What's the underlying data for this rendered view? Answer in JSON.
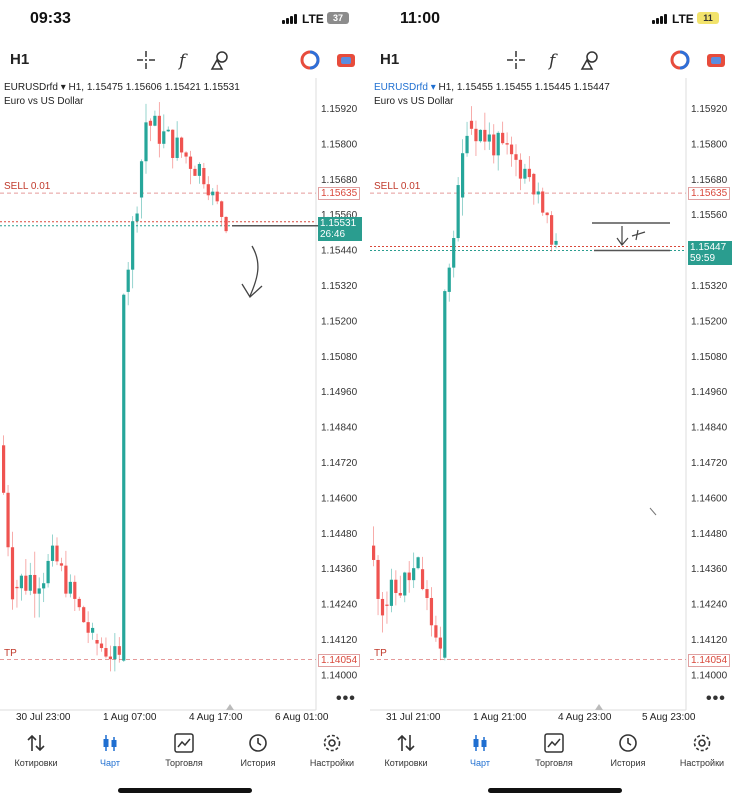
{
  "screens": [
    {
      "status": {
        "time": "09:33",
        "network": "LTE",
        "battery": "37"
      },
      "toolbar": {
        "timeframe": "H1",
        "icons": [
          "crosshair-icon",
          "function-icon",
          "objects-icon",
          "account-icon",
          "trade-icon"
        ]
      },
      "info": {
        "symbol": "EURUSDrfd",
        "ohlc": "H1, 1.15475 1.15606 1.15421 1.15531",
        "description": "Euro vs US Dollar"
      },
      "price_axis": [
        "1.15920",
        "1.15800",
        "1.15680",
        "1.15635",
        "1.15560",
        "1.15531",
        "1.15440",
        "1.15320",
        "1.15200",
        "1.15080",
        "1.14960",
        "1.14840",
        "1.14720",
        "1.14600",
        "1.14480",
        "1.14360",
        "1.14240",
        "1.14120",
        "1.14054",
        "1.14000"
      ],
      "sell": {
        "label": "SELL 0.01",
        "price": "1.15635"
      },
      "tp": {
        "label": "TP",
        "price": "1.14054"
      },
      "current": {
        "price": "1.15531",
        "timer": "26:46"
      },
      "x_axis": [
        "30 Jul 23:00",
        "1 Aug 07:00",
        "4 Aug 17:00",
        "6 Aug 01:00"
      ]
    },
    {
      "status": {
        "time": "11:00",
        "network": "LTE",
        "battery": "11"
      },
      "toolbar": {
        "timeframe": "H1",
        "icons": [
          "crosshair-icon",
          "function-icon",
          "objects-icon",
          "account-icon",
          "trade-icon"
        ]
      },
      "info": {
        "symbol": "EURUSDrfd",
        "ohlc": "H1, 1.15455 1.15455 1.15445 1.15447",
        "description": "Euro vs US Dollar"
      },
      "price_axis": [
        "1.15920",
        "1.15800",
        "1.15680",
        "1.15635",
        "1.15560",
        "1.15447",
        "1.15320",
        "1.15200",
        "1.15080",
        "1.14960",
        "1.14840",
        "1.14720",
        "1.14600",
        "1.14480",
        "1.14360",
        "1.14240",
        "1.14120",
        "1.14054",
        "1.14000"
      ],
      "sell": {
        "label": "SELL 0.01",
        "price": "1.15635"
      },
      "tp": {
        "label": "TP",
        "price": "1.14054"
      },
      "current": {
        "price": "1.15447",
        "timer": "59:59"
      },
      "x_axis": [
        "31 Jul 21:00",
        "1 Aug 21:00",
        "4 Aug 23:00",
        "5 Aug 23:00"
      ]
    }
  ],
  "nav": [
    {
      "label": "Котировки",
      "icon": "quotes-icon"
    },
    {
      "label": "Чарт",
      "icon": "chart-icon",
      "active": true
    },
    {
      "label": "Торговля",
      "icon": "trade-chart-icon"
    },
    {
      "label": "История",
      "icon": "history-icon"
    },
    {
      "label": "Настройки",
      "icon": "settings-icon"
    }
  ],
  "colors": {
    "bull": "#26a69a",
    "bear": "#ef5350",
    "active": "#1f6fd1",
    "level": "#d9483b"
  }
}
